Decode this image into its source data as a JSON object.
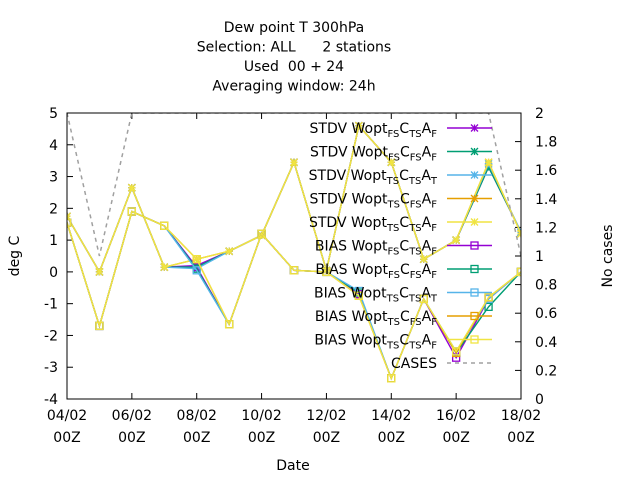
{
  "chart_data": {
    "type": "line",
    "title_lines": [
      "Dew point T 300hPa",
      "Selection: ALL      2 stations",
      "Used  00 + 24",
      "Averaging window: 24h"
    ],
    "xlabel": "Date",
    "ylabel": "deg C",
    "y2label": "No cases",
    "xlim": [
      0,
      14
    ],
    "ylim": [
      -4,
      5
    ],
    "y2lim": [
      0,
      2
    ],
    "x_ticks": [
      {
        "x": 0,
        "l1": "04/02",
        "l2": "00Z"
      },
      {
        "x": 2,
        "l1": "06/02",
        "l2": "00Z"
      },
      {
        "x": 4,
        "l1": "08/02",
        "l2": "00Z"
      },
      {
        "x": 6,
        "l1": "10/02",
        "l2": "00Z"
      },
      {
        "x": 8,
        "l1": "12/02",
        "l2": "00Z"
      },
      {
        "x": 10,
        "l1": "14/02",
        "l2": "00Z"
      },
      {
        "x": 12,
        "l1": "16/02",
        "l2": "00Z"
      },
      {
        "x": 14,
        "l1": "18/02",
        "l2": "00Z"
      }
    ],
    "y_ticks": [
      -4,
      -3,
      -2,
      -1,
      0,
      1,
      2,
      3,
      4,
      5
    ],
    "y2_ticks": [
      "0",
      "0.2",
      "0.4",
      "0.6",
      "0.8",
      "1",
      "1.2",
      "1.4",
      "1.6",
      "1.8",
      "2"
    ],
    "x": [
      0,
      1,
      2,
      3,
      4,
      5,
      6,
      7,
      8,
      9,
      10,
      11,
      12,
      13,
      14
    ],
    "series": [
      {
        "label": "STDV Wopt_{FS}C_{TS}A_{F}",
        "color": "#9400d3",
        "marker": "x",
        "axis": "y",
        "values": [
          1.75,
          0.0,
          2.65,
          0.15,
          0.2,
          0.65,
          1.15,
          3.45,
          0.05,
          4.6,
          3.45,
          0.4,
          1.0,
          3.3,
          1.25
        ]
      },
      {
        "label": "STDV Wopt_{FS}C_{FS}A_{F}",
        "color": "#009e73",
        "marker": "x",
        "axis": "y",
        "values": [
          1.75,
          0.0,
          2.65,
          0.15,
          0.15,
          0.65,
          1.15,
          3.45,
          0.05,
          4.6,
          3.45,
          0.4,
          1.0,
          3.3,
          1.25
        ]
      },
      {
        "label": "STDV Wopt_{TS}C_{TS}A_{T}",
        "color": "#56b4e9",
        "marker": "x",
        "axis": "y",
        "values": [
          1.75,
          0.0,
          2.65,
          0.15,
          0.1,
          0.65,
          1.15,
          3.45,
          0.05,
          4.6,
          3.45,
          0.4,
          1.0,
          3.4,
          1.25
        ]
      },
      {
        "label": "STDV Wopt_{TS}C_{FS}A_{F}",
        "color": "#e69f00",
        "marker": "x",
        "axis": "y",
        "values": [
          1.75,
          0.0,
          2.65,
          0.15,
          0.4,
          0.65,
          1.15,
          3.45,
          0.05,
          4.6,
          3.45,
          0.4,
          1.0,
          3.45,
          1.2
        ]
      },
      {
        "label": "STDV Wopt_{TS}C_{TS}A_{F}",
        "color": "#f0e442",
        "marker": "x",
        "axis": "y",
        "values": [
          1.75,
          0.0,
          2.65,
          0.15,
          0.4,
          0.65,
          1.15,
          3.45,
          0.05,
          4.6,
          3.45,
          0.4,
          1.0,
          3.45,
          1.2
        ]
      },
      {
        "label": "BIAS Wopt_{FS}C_{TS}A_{F}",
        "color": "#9400d3",
        "marker": "square",
        "axis": "y",
        "values": [
          1.55,
          -1.7,
          1.9,
          1.45,
          0.15,
          -1.65,
          1.2,
          0.05,
          0.0,
          -0.7,
          -3.35,
          -0.85,
          -2.7,
          -0.85,
          0.0
        ]
      },
      {
        "label": "BIAS Wopt_{FS}C_{FS}A_{F}",
        "color": "#009e73",
        "marker": "square",
        "axis": "y",
        "values": [
          1.55,
          -1.7,
          1.9,
          1.45,
          0.1,
          -1.65,
          1.2,
          0.05,
          0.0,
          -0.65,
          -3.35,
          -0.85,
          -2.55,
          -1.1,
          0.0
        ]
      },
      {
        "label": "BIAS Wopt_{TS}C_{TS}A_{T}",
        "color": "#56b4e9",
        "marker": "square",
        "axis": "y",
        "values": [
          1.55,
          -1.7,
          1.9,
          1.45,
          0.05,
          -1.65,
          1.2,
          0.05,
          0.0,
          -0.6,
          -3.35,
          -0.85,
          -2.5,
          -0.85,
          0.0
        ]
      },
      {
        "label": "BIAS Wopt_{TS}C_{FS}A_{F}",
        "color": "#e69f00",
        "marker": "square",
        "axis": "y",
        "values": [
          1.55,
          -1.7,
          1.9,
          1.45,
          0.4,
          -1.65,
          1.2,
          0.05,
          0.0,
          -0.75,
          -3.35,
          -0.85,
          -2.55,
          -0.8,
          0.0
        ]
      },
      {
        "label": "BIAS Wopt_{TS}C_{TS}A_{F}",
        "color": "#f0e442",
        "marker": "square",
        "axis": "y",
        "values": [
          1.55,
          -1.7,
          1.9,
          1.45,
          0.4,
          -1.65,
          1.2,
          0.05,
          0.0,
          -0.75,
          -3.35,
          -0.85,
          -2.5,
          -0.8,
          0.0
        ]
      },
      {
        "label": "CASES",
        "color": "#a0a0a0",
        "marker": "none",
        "dashed": true,
        "axis": "y2",
        "values": [
          2,
          1,
          2,
          2,
          2,
          2,
          2,
          2,
          2,
          2,
          2,
          2,
          2,
          2,
          1
        ]
      }
    ]
  }
}
